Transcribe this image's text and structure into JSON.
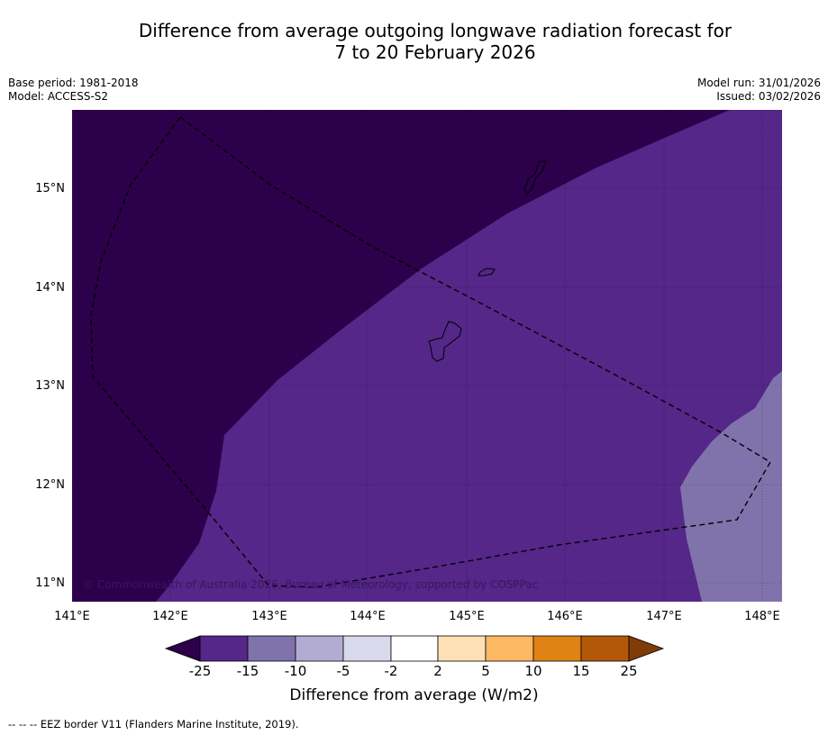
{
  "title_line1": "Difference from average outgoing longwave radiation forecast for",
  "title_line2": "7 to 20 February 2026",
  "meta": {
    "base_period": "Base period: 1981-2018",
    "model": "Model: ACCESS-S2",
    "model_run": "Model run: 31/01/2026",
    "issued": "Issued: 03/02/2026"
  },
  "map": {
    "lat_labels": [
      "15°N",
      "14°N",
      "13°N",
      "12°N",
      "11°N"
    ],
    "lon_labels": [
      "141°E",
      "142°E",
      "143°E",
      "144°E",
      "145°E",
      "146°E",
      "147°E",
      "148°E"
    ],
    "copyright": "© Commonwealth of Australia 2026, Bureau of Meteorology, supported by COSPPac",
    "colors": {
      "below_minus25": "#2d004b",
      "minus25_minus15": "#542788",
      "minus15_minus10": "#8073ac",
      "minus10_minus5": "#b2abd2",
      "minus5_minus2": "#d8daeb",
      "minus2_2": "#ffffff",
      "2_5": "#fee0b6",
      "5_10": "#fdb863",
      "10_15": "#e08214",
      "15_25": "#b35806",
      "above_25": "#7f3b08"
    }
  },
  "colorbar": {
    "tick_labels": [
      "-25",
      "-15",
      "-10",
      "-5",
      "-2",
      "2",
      "5",
      "10",
      "15",
      "25"
    ],
    "title": "Difference from average (W/m2)"
  },
  "footer": "--  --  -- EEZ border V11 (Flanders Marine Institute, 2019)."
}
